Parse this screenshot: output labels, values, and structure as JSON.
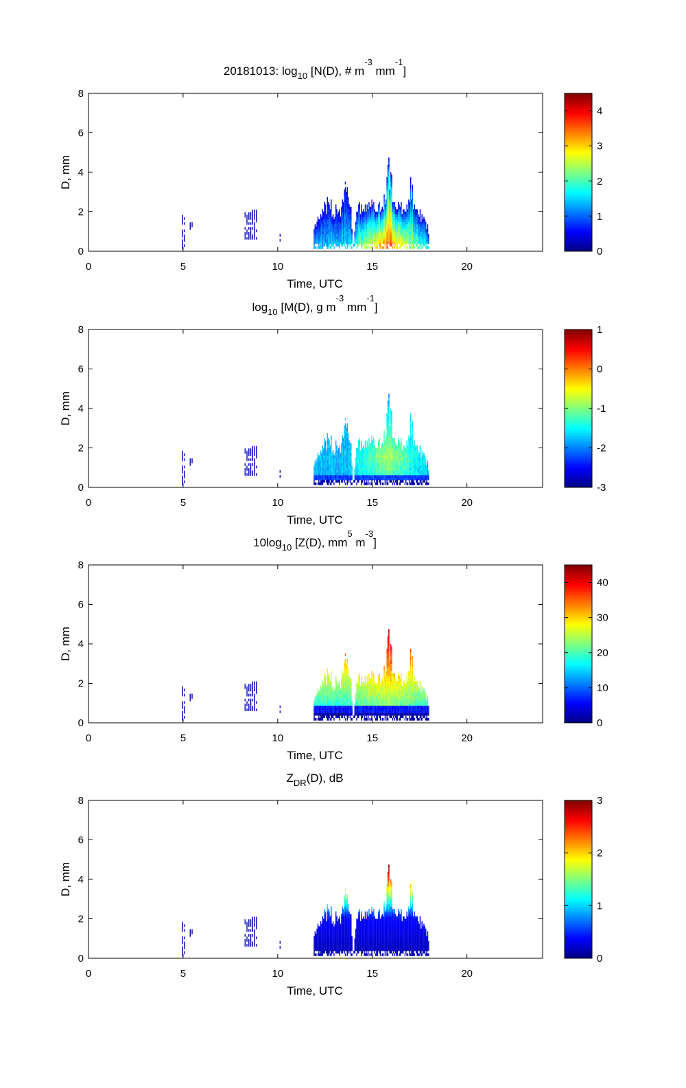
{
  "chart_data": {
    "type": "heatmap",
    "colormap": "jet",
    "shared": {
      "xlabel": "Time, UTC",
      "ylabel": "D, mm",
      "xlim": [
        0,
        24
      ],
      "ylim": [
        0,
        8
      ],
      "xticks": [
        "0",
        "5",
        "10",
        "15",
        "20"
      ],
      "yticks": [
        "0",
        "2",
        "4",
        "6",
        "8"
      ],
      "isolated_events": [
        {
          "t0": 4.95,
          "t1": 5.05,
          "dmin": 0.1,
          "dmax": 1.8
        },
        {
          "t0": 5.35,
          "t1": 5.45,
          "dmin": 1.1,
          "dmax": 1.4
        },
        {
          "t0": 8.25,
          "t1": 8.85,
          "dmin": 0.6,
          "dmax": 2.1
        },
        {
          "t0": 10.1,
          "t1": 10.15,
          "dmin": 0.5,
          "dmax": 0.8
        }
      ],
      "storm_envelope_time_h": [
        11.9,
        12.2,
        12.6,
        13.0,
        13.3,
        13.55,
        13.85,
        13.95,
        14.2,
        14.6,
        15.0,
        15.4,
        15.65,
        15.85,
        16.1,
        16.5,
        16.9,
        17.0,
        17.3,
        17.6,
        17.9,
        18.0
      ],
      "storm_envelope_dmax_mm": [
        1.2,
        2.0,
        2.6,
        2.2,
        2.4,
        3.5,
        2.2,
        0.0,
        2.4,
        2.3,
        2.6,
        2.5,
        3.0,
        4.7,
        3.0,
        2.4,
        2.6,
        3.7,
        2.3,
        1.8,
        1.3,
        0.9
      ],
      "storm_peak_time_h": 15.85
    },
    "panels": [
      {
        "title": [
          {
            "t": "20181013: log"
          },
          {
            "t": "10",
            "s": "sub"
          },
          {
            "t": " [N(D), # m"
          },
          {
            "t": "-3",
            "s": "sup"
          },
          {
            "t": " mm"
          },
          {
            "t": "-1",
            "s": "sup"
          },
          {
            "t": "]"
          }
        ],
        "clim": [
          0,
          4.5
        ],
        "cticks": [
          "0",
          "1",
          "2",
          "3",
          "4"
        ],
        "model": "N"
      },
      {
        "title": [
          {
            "t": "log"
          },
          {
            "t": "10",
            "s": "sub"
          },
          {
            "t": " [M(D), g m"
          },
          {
            "t": "-3",
            "s": "sup"
          },
          {
            "t": " mm"
          },
          {
            "t": "-1",
            "s": "sup"
          },
          {
            "t": "]"
          }
        ],
        "clim": [
          -3,
          1
        ],
        "cticks": [
          "-3",
          "-2",
          "-1",
          "0",
          "1"
        ],
        "model": "M"
      },
      {
        "title": [
          {
            "t": "10log"
          },
          {
            "t": "10",
            "s": "sub"
          },
          {
            "t": " [Z(D),  mm"
          },
          {
            "t": "5",
            "s": "sup"
          },
          {
            "t": " m"
          },
          {
            "t": "-3",
            "s": "sup"
          },
          {
            "t": "]"
          }
        ],
        "clim": [
          0,
          45
        ],
        "cticks": [
          "0",
          "10",
          "20",
          "30",
          "40"
        ],
        "model": "Z"
      },
      {
        "title": [
          {
            "t": "Z"
          },
          {
            "t": "DR",
            "s": "sub"
          },
          {
            "t": "(D), dB"
          }
        ],
        "clim": [
          0,
          3
        ],
        "cticks": [
          "0",
          "1",
          "2",
          "3"
        ],
        "model": "ZDR"
      }
    ]
  }
}
